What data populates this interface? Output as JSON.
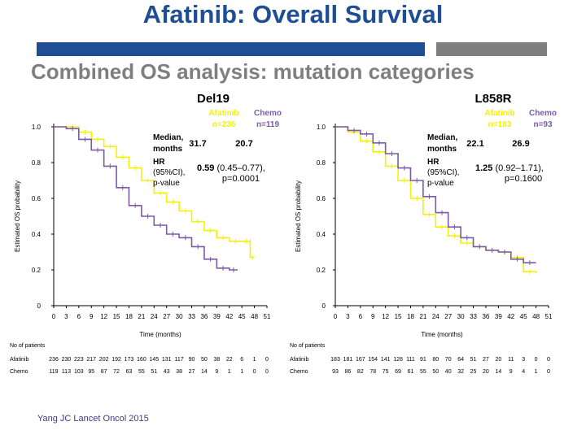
{
  "slide": {
    "title": "Afatinib: Overall Survival",
    "subtitle": "Combined OS analysis: mutation categories",
    "source": "Yang  JC Lancet Oncol 2015"
  },
  "colors": {
    "afatinib": "#f5f00a",
    "chemo": "#7b5aa6",
    "title": "#1f4e94"
  },
  "chart_data": [
    {
      "type": "line",
      "title": "Del19",
      "xlabel": "Time (months)",
      "ylabel": "Estimated OS probability",
      "xlim": [
        0,
        51
      ],
      "ylim": [
        0,
        1.0
      ],
      "x_ticks": [
        0,
        3,
        6,
        9,
        12,
        15,
        18,
        21,
        24,
        27,
        30,
        33,
        36,
        39,
        42,
        45,
        48,
        51
      ],
      "y_ticks": [
        "0",
        "0.2",
        "0.4",
        "0.6",
        "0.8",
        "1.0"
      ],
      "legend": [
        {
          "name": "Afatinib",
          "n": "n=236",
          "color": "#f5f00a"
        },
        {
          "name": "Chemo",
          "n": "n=119",
          "color": "#7b5aa6"
        }
      ],
      "stats": {
        "median_label_1": "Median,",
        "median_label_2": "months",
        "median_afatinib": "31.7",
        "median_chemo": "20.7",
        "hr_label_1": "HR",
        "hr_label_2": "(95%CI),",
        "hr_label_3": "p-value",
        "hr_value": "0.59",
        "hr_ci": " (0.45–0.77),",
        "p_value": "p=0.0001"
      },
      "series": [
        {
          "name": "Afatinib",
          "color": "#f5f00a",
          "points": [
            [
              0,
              1.0
            ],
            [
              3,
              1.0
            ],
            [
              6,
              0.97
            ],
            [
              9,
              0.93
            ],
            [
              12,
              0.89
            ],
            [
              15,
              0.83
            ],
            [
              18,
              0.77
            ],
            [
              21,
              0.7
            ],
            [
              24,
              0.63
            ],
            [
              27,
              0.58
            ],
            [
              30,
              0.53
            ],
            [
              33,
              0.47
            ],
            [
              36,
              0.42
            ],
            [
              39,
              0.38
            ],
            [
              42,
              0.36
            ],
            [
              45,
              0.36
            ],
            [
              47,
              0.36
            ],
            [
              47,
              0.27
            ],
            [
              48,
              0.27
            ]
          ]
        },
        {
          "name": "Chemo",
          "color": "#7b5aa6",
          "points": [
            [
              0,
              1.0
            ],
            [
              3,
              0.99
            ],
            [
              6,
              0.93
            ],
            [
              9,
              0.87
            ],
            [
              12,
              0.78
            ],
            [
              15,
              0.66
            ],
            [
              18,
              0.56
            ],
            [
              21,
              0.5
            ],
            [
              24,
              0.45
            ],
            [
              27,
              0.4
            ],
            [
              30,
              0.38
            ],
            [
              33,
              0.33
            ],
            [
              36,
              0.26
            ],
            [
              39,
              0.21
            ],
            [
              42,
              0.2
            ],
            [
              44,
              0.2
            ]
          ]
        }
      ],
      "risk_table": {
        "header": "No of patients",
        "rows": [
          {
            "label": "Afatinib",
            "values": [
              "236",
              "230",
              "223",
              "217",
              "202",
              "192",
              "173",
              "160",
              "145",
              "131",
              "117",
              "90",
              "50",
              "38",
              "22",
              "6",
              "1",
              "0"
            ]
          },
          {
            "label": "Chemo",
            "values": [
              "119",
              "113",
              "103",
              "95",
              "87",
              "72",
              "63",
              "55",
              "51",
              "43",
              "38",
              "27",
              "14",
              "9",
              "1",
              "1",
              "0",
              "0"
            ]
          }
        ]
      }
    },
    {
      "type": "line",
      "title": "L858R",
      "xlabel": "Time (months)",
      "ylabel": "Estimated OS probability",
      "xlim": [
        0,
        51
      ],
      "ylim": [
        0,
        1.0
      ],
      "x_ticks": [
        0,
        3,
        6,
        9,
        12,
        15,
        18,
        21,
        24,
        27,
        30,
        33,
        36,
        39,
        42,
        45,
        48,
        51
      ],
      "y_ticks": [
        "0",
        "0.2",
        "0.4",
        "0.6",
        "0.8",
        "1.0"
      ],
      "legend": [
        {
          "name": "Afatinib",
          "n": "n=183",
          "color": "#f5f00a"
        },
        {
          "name": "Chemo",
          "n": "n=93",
          "color": "#7b5aa6"
        }
      ],
      "stats": {
        "median_label_1": "Median,",
        "median_label_2": "months",
        "median_afatinib": "22.1",
        "median_chemo": "26.9",
        "hr_label_1": "HR",
        "hr_label_2": "(95%CI),",
        "hr_label_3": "p-value",
        "hr_value": "1.25",
        "hr_ci": " (0.92–1.71),",
        "p_value": "p=0.1600"
      },
      "series": [
        {
          "name": "Afatinib",
          "color": "#f5f00a",
          "points": [
            [
              0,
              1.0
            ],
            [
              3,
              0.97
            ],
            [
              6,
              0.92
            ],
            [
              9,
              0.86
            ],
            [
              12,
              0.78
            ],
            [
              15,
              0.7
            ],
            [
              18,
              0.6
            ],
            [
              21,
              0.51
            ],
            [
              24,
              0.44
            ],
            [
              27,
              0.39
            ],
            [
              30,
              0.35
            ],
            [
              33,
              0.33
            ],
            [
              36,
              0.31
            ],
            [
              39,
              0.3
            ],
            [
              42,
              0.27
            ],
            [
              45,
              0.19
            ],
            [
              48,
              0.18
            ]
          ]
        },
        {
          "name": "Chemo",
          "color": "#7b5aa6",
          "points": [
            [
              0,
              1.0
            ],
            [
              3,
              0.98
            ],
            [
              6,
              0.96
            ],
            [
              9,
              0.91
            ],
            [
              12,
              0.85
            ],
            [
              15,
              0.77
            ],
            [
              18,
              0.7
            ],
            [
              21,
              0.61
            ],
            [
              24,
              0.52
            ],
            [
              27,
              0.44
            ],
            [
              30,
              0.38
            ],
            [
              33,
              0.33
            ],
            [
              36,
              0.31
            ],
            [
              39,
              0.3
            ],
            [
              42,
              0.26
            ],
            [
              45,
              0.24
            ],
            [
              48,
              0.24
            ]
          ]
        }
      ],
      "risk_table": {
        "header": "No of patients",
        "rows": [
          {
            "label": "Afatinib",
            "values": [
              "183",
              "181",
              "167",
              "154",
              "141",
              "128",
              "111",
              "91",
              "80",
              "70",
              "64",
              "51",
              "27",
              "20",
              "11",
              "3",
              "0",
              "0"
            ]
          },
          {
            "label": "Chemo",
            "values": [
              "93",
              "86",
              "82",
              "78",
              "75",
              "69",
              "61",
              "55",
              "50",
              "40",
              "32",
              "25",
              "20",
              "14",
              "9",
              "4",
              "1",
              "0"
            ]
          }
        ]
      }
    }
  ]
}
